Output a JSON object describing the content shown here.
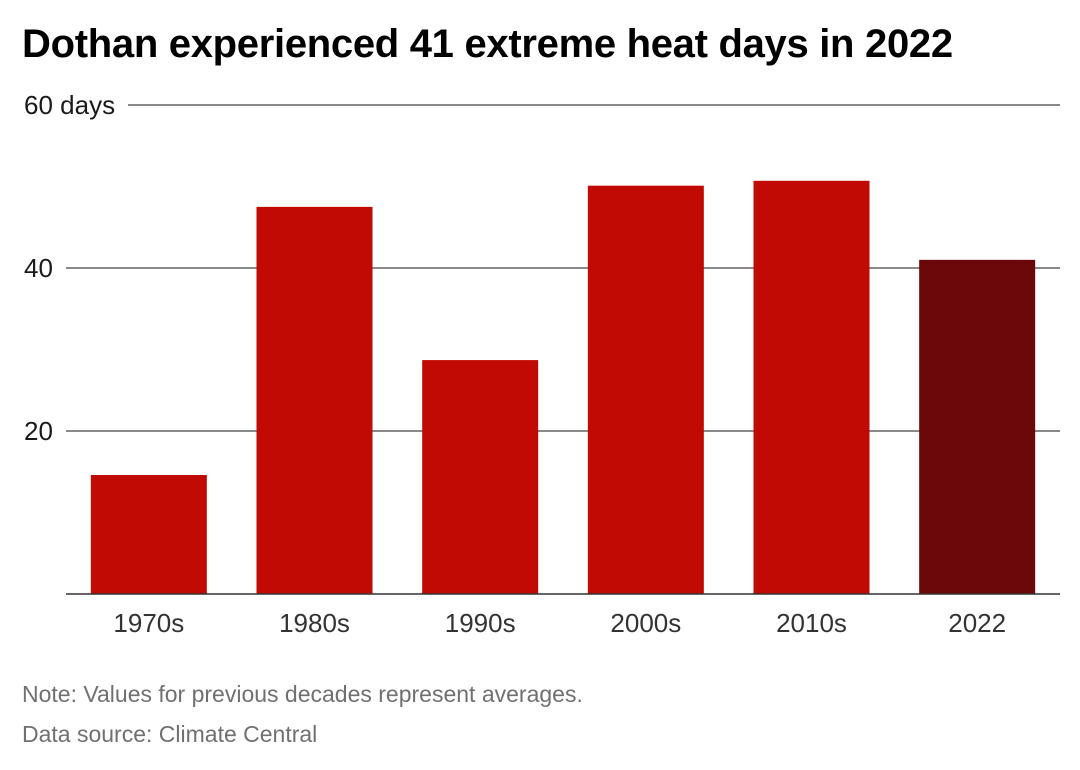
{
  "chart_data": {
    "type": "bar",
    "title": "Dothan experienced 41 extreme heat days in 2022",
    "categories": [
      "1970s",
      "1980s",
      "1990s",
      "2000s",
      "2010s",
      "2022"
    ],
    "values": [
      14.6,
      47.5,
      28.7,
      50.1,
      50.7,
      41
    ],
    "ylim": [
      0,
      60
    ],
    "y_ticks": [
      {
        "value": 20,
        "label": "20"
      },
      {
        "value": 40,
        "label": "40"
      },
      {
        "value": 60,
        "label": "60 days"
      }
    ],
    "grid": true,
    "colors": {
      "bar": "#c20a05",
      "highlight": "#6b090a"
    },
    "highlight_category": "2022"
  },
  "footer": {
    "note": "Note: Values for previous decades represent averages.",
    "source": "Data source: Climate Central"
  }
}
